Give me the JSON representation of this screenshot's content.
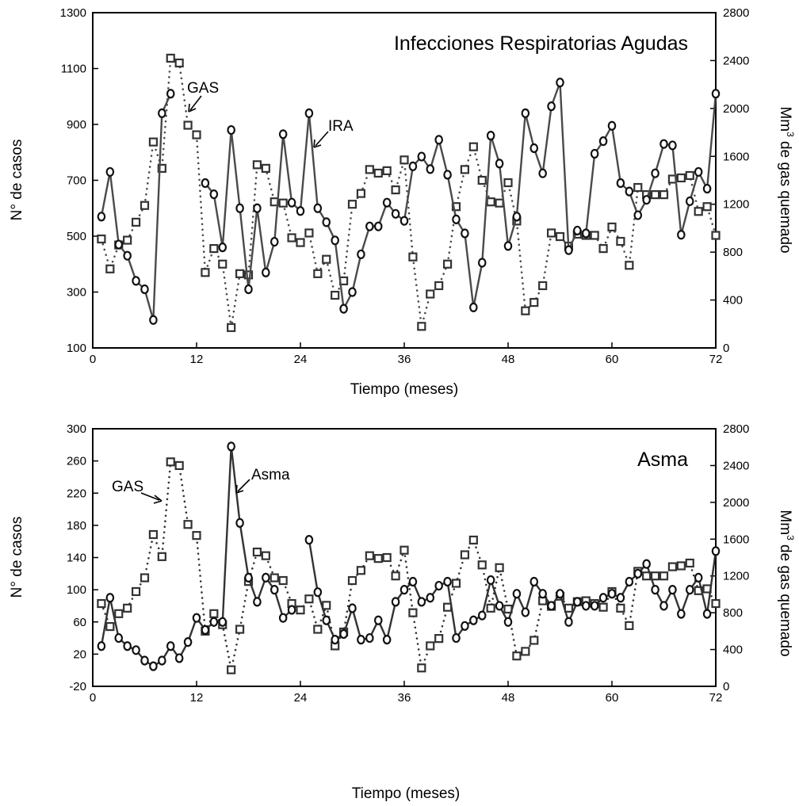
{
  "chart_data": [
    {
      "type": "line",
      "title": "Infecciones Respiratorias Agudas",
      "xlabel": "Tiempo (meses)",
      "ylabel": "N° de casos",
      "y2label_base": "Mm",
      "y2label_sup": "3",
      "y2label_rest": " de gas quemado",
      "xlim": [
        0,
        72
      ],
      "ylim": [
        100,
        1300
      ],
      "y2lim": [
        0,
        2800
      ],
      "xticks": [
        "0",
        "12",
        "24",
        "36",
        "48",
        "60",
        "72"
      ],
      "yticks": [
        "100",
        "300",
        "500",
        "700",
        "900",
        "1100",
        "1300"
      ],
      "y2ticks": [
        "0",
        "400",
        "800",
        "1200",
        "1600",
        "2000",
        "2400",
        "2800"
      ],
      "grid": false,
      "legend": "none",
      "series": [
        {
          "name": "IRA",
          "axis": "left",
          "marker": "circle",
          "line": "solid",
          "color": "#4a4a4a",
          "x": [
            1,
            2,
            3,
            4,
            5,
            6,
            7,
            8,
            9,
            10,
            11,
            12,
            13,
            14,
            15,
            16,
            17,
            18,
            19,
            20,
            21,
            22,
            23,
            24,
            25,
            26,
            27,
            28,
            29,
            30,
            31,
            32,
            33,
            34,
            35,
            36,
            37,
            38,
            39,
            40,
            41,
            42,
            43,
            44,
            45,
            46,
            47,
            48,
            49,
            50,
            51,
            52,
            53,
            54,
            55,
            56,
            57,
            58,
            59,
            60,
            61,
            62,
            63,
            64,
            65,
            66,
            67,
            68,
            69,
            70,
            71,
            72
          ],
          "y": [
            570,
            730,
            470,
            430,
            340,
            310,
            200,
            940,
            1010,
            null,
            null,
            null,
            690,
            650,
            460,
            880,
            600,
            310,
            600,
            370,
            480,
            865,
            620,
            590,
            940,
            600,
            550,
            485,
            240,
            300,
            435,
            535,
            535,
            620,
            580,
            555,
            750,
            785,
            740,
            845,
            720,
            560,
            510,
            245,
            405,
            860,
            760,
            465,
            570,
            940,
            815,
            725,
            965,
            1050,
            450,
            520,
            510,
            795,
            840,
            895,
            690,
            660,
            575,
            630,
            725,
            830,
            825,
            505,
            625,
            730,
            670,
            1010
          ]
        },
        {
          "name": "GAS",
          "axis": "right",
          "marker": "square",
          "line": "dotted",
          "color": "#4a4a4a",
          "x": [
            1,
            2,
            3,
            4,
            5,
            6,
            7,
            8,
            9,
            10,
            11,
            12,
            13,
            14,
            15,
            16,
            17,
            18,
            19,
            20,
            21,
            22,
            23,
            24,
            25,
            26,
            27,
            28,
            29,
            30,
            31,
            32,
            33,
            34,
            35,
            36,
            37,
            38,
            39,
            40,
            41,
            42,
            43,
            44,
            45,
            46,
            47,
            48,
            49,
            50,
            51,
            52,
            53,
            54,
            55,
            56,
            57,
            58,
            59,
            60,
            61,
            62,
            63,
            64,
            65,
            66,
            67,
            68,
            69,
            70,
            71,
            72
          ],
          "y": [
            910,
            660,
            860,
            900,
            1050,
            1190,
            1720,
            1500,
            2420,
            2380,
            1860,
            1780,
            630,
            830,
            700,
            170,
            620,
            610,
            1530,
            1500,
            1220,
            1210,
            920,
            880,
            960,
            620,
            740,
            440,
            560,
            1200,
            1290,
            1490,
            1460,
            1480,
            1320,
            1570,
            760,
            180,
            450,
            520,
            700,
            1180,
            1490,
            1680,
            1400,
            1220,
            1210,
            1380,
            1060,
            310,
            380,
            520,
            960,
            930,
            850,
            950,
            940,
            940,
            830,
            1010,
            890,
            690,
            1340,
            1280,
            1280,
            1280,
            1410,
            1420,
            1440,
            1140,
            1180,
            940
          ]
        }
      ],
      "annotations": [
        {
          "text": "GAS",
          "target": "GAS",
          "target_x": 10
        },
        {
          "text": "IRA",
          "target": "IRA",
          "target_x": 25
        }
      ]
    },
    {
      "type": "line",
      "title": "Asma",
      "xlabel": "Tiempo (meses)",
      "ylabel": "N° de casos",
      "y2label_base": "Mm",
      "y2label_sup": "3",
      "y2label_rest": " de gas quemado",
      "xlim": [
        0,
        72
      ],
      "ylim": [
        -20,
        300
      ],
      "y2lim": [
        0,
        2800
      ],
      "xticks": [
        "0",
        "12",
        "24",
        "36",
        "48",
        "60",
        "72"
      ],
      "yticks": [
        "-20",
        "20",
        "60",
        "100",
        "140",
        "180",
        "220",
        "260",
        "300"
      ],
      "y2ticks": [
        "0",
        "400",
        "800",
        "1200",
        "1600",
        "2000",
        "2400",
        "2800"
      ],
      "grid": false,
      "legend": "none",
      "series": [
        {
          "name": "Asma",
          "axis": "left",
          "marker": "circle",
          "line": "solid",
          "color": "#333333",
          "x": [
            1,
            2,
            3,
            4,
            5,
            6,
            7,
            8,
            9,
            10,
            11,
            12,
            13,
            14,
            15,
            16,
            17,
            18,
            19,
            20,
            21,
            22,
            23,
            24,
            25,
            26,
            27,
            28,
            29,
            30,
            31,
            32,
            33,
            34,
            35,
            36,
            37,
            38,
            39,
            40,
            41,
            42,
            43,
            44,
            45,
            46,
            47,
            48,
            49,
            50,
            51,
            52,
            53,
            54,
            55,
            56,
            57,
            58,
            59,
            60,
            61,
            62,
            63,
            64,
            65,
            66,
            67,
            68,
            69,
            70,
            71,
            72
          ],
          "y": [
            30,
            90,
            40,
            30,
            25,
            12,
            5,
            12,
            30,
            15,
            35,
            65,
            50,
            60,
            60,
            278,
            183,
            115,
            85,
            115,
            100,
            65,
            75,
            null,
            162,
            97,
            62,
            38,
            45,
            77,
            38,
            40,
            62,
            38,
            85,
            100,
            110,
            85,
            90,
            105,
            110,
            40,
            55,
            62,
            68,
            112,
            80,
            60,
            95,
            72,
            110,
            95,
            80,
            95,
            60,
            85,
            80,
            80,
            90,
            95,
            90,
            110,
            120,
            132,
            100,
            80,
            100,
            70,
            100,
            115,
            70,
            148
          ]
        },
        {
          "name": "GAS",
          "axis": "right",
          "marker": "square",
          "line": "dotted",
          "color": "#333333",
          "x": [
            1,
            2,
            3,
            4,
            5,
            6,
            7,
            8,
            9,
            10,
            11,
            12,
            13,
            14,
            15,
            16,
            17,
            18,
            19,
            20,
            21,
            22,
            23,
            24,
            25,
            26,
            27,
            28,
            29,
            30,
            31,
            32,
            33,
            34,
            35,
            36,
            37,
            38,
            39,
            40,
            41,
            42,
            43,
            44,
            45,
            46,
            47,
            48,
            49,
            50,
            51,
            52,
            53,
            54,
            55,
            56,
            57,
            58,
            59,
            60,
            61,
            62,
            63,
            64,
            65,
            66,
            67,
            68,
            69,
            70,
            71,
            72
          ],
          "y": [
            900,
            650,
            790,
            850,
            1030,
            1180,
            1650,
            1410,
            2440,
            2400,
            1760,
            1640,
            600,
            790,
            670,
            180,
            620,
            1140,
            1460,
            1420,
            1180,
            1150,
            900,
            830,
            950,
            620,
            880,
            440,
            590,
            1150,
            1260,
            1420,
            1390,
            1400,
            1200,
            1480,
            800,
            200,
            440,
            520,
            860,
            1120,
            1430,
            1590,
            1320,
            850,
            1290,
            840,
            330,
            380,
            500,
            930,
            870,
            980,
            850,
            920,
            930,
            900,
            860,
            1030,
            850,
            660,
            1250,
            1200,
            1200,
            1200,
            1300,
            1310,
            1340,
            1040,
            1060,
            900
          ]
        }
      ],
      "annotations": [
        {
          "text": "GAS",
          "target": "GAS",
          "target_x": 9
        },
        {
          "text": "Asma",
          "target": "Asma",
          "target_x": 16
        }
      ]
    }
  ]
}
